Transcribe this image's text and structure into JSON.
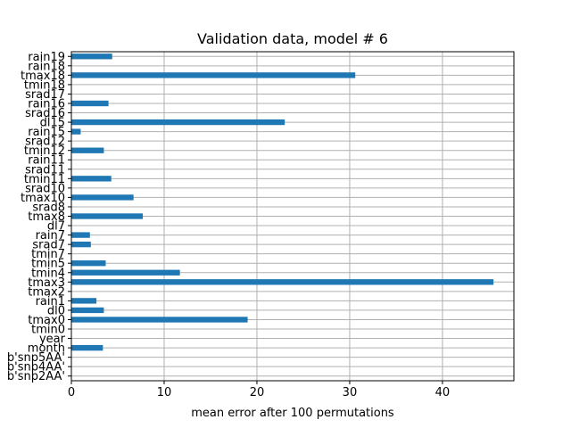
{
  "chart_data": {
    "type": "bar",
    "orientation": "horizontal",
    "title": "Validation data, model # 6",
    "xlabel": "mean error after 100 permutations",
    "ylabel": "",
    "xlim": [
      0,
      47.7
    ],
    "xticks": [
      0,
      10,
      20,
      30,
      40
    ],
    "grid": true,
    "bar_color": "#1f77b4",
    "categories": [
      "rain19",
      "rain18",
      "tmax18",
      "tmin18",
      "srad17",
      "rain16",
      "srad16",
      "dl15",
      "rain15",
      "srad12",
      "tmin12",
      "rain11",
      "srad11",
      "tmin11",
      "srad10",
      "tmax10",
      "srad8",
      "tmax8",
      "dl7",
      "rain7",
      "srad7",
      "tmin7",
      "tmin5",
      "tmin4",
      "tmax3",
      "tmax2",
      "rain1",
      "dl0",
      "tmax0",
      "tmin0",
      "year",
      "month",
      "b'snp5AA'",
      "b'snp4AA'",
      "b'snp2AA'"
    ],
    "values": [
      4.4,
      0,
      30.6,
      0,
      0,
      4.0,
      0,
      23.0,
      1.0,
      0,
      3.5,
      0,
      0,
      4.3,
      0,
      6.7,
      0,
      7.7,
      0,
      2.0,
      2.1,
      0,
      3.7,
      11.7,
      45.5,
      0,
      2.7,
      3.5,
      19.0,
      0,
      0,
      3.4,
      0,
      0,
      0
    ]
  }
}
